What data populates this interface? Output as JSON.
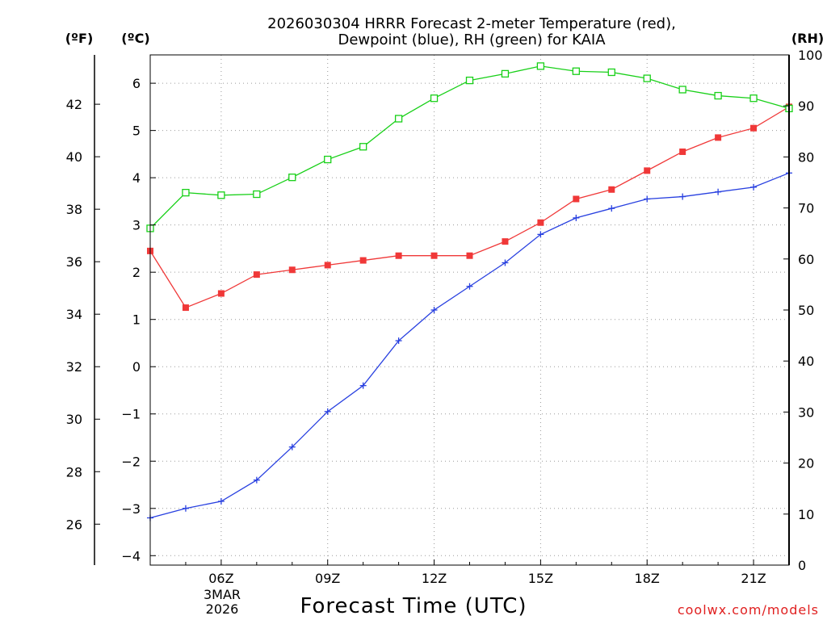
{
  "chart_data": {
    "type": "line",
    "title": [
      "2026030304 HRRR Forecast 2-meter Temperature (red),",
      "Dewpoint (blue), RH (green) for KAIA"
    ],
    "xlabel": "Forecast Time (UTC)",
    "left_units": {
      "fahrenheit": "(ºF)",
      "celsius": "(ºC)"
    },
    "right_unit": "(RH)",
    "date_label": [
      "3MAR",
      "2026"
    ],
    "credit": "coolwx.com/models",
    "x_hours": [
      4,
      5,
      6,
      7,
      8,
      9,
      10,
      11,
      12,
      13,
      14,
      15,
      16,
      17,
      18,
      19,
      20,
      21,
      22
    ],
    "x_tick_hours": [
      6,
      9,
      12,
      15,
      18,
      21
    ],
    "x_tick_labels": [
      "06Z",
      "09Z",
      "12Z",
      "15Z",
      "18Z",
      "21Z"
    ],
    "xlim": [
      4,
      22
    ],
    "ylim_c": [
      -4.2,
      6.6
    ],
    "y_ticks_c": [
      -4,
      -3,
      -2,
      -1,
      0,
      1,
      2,
      3,
      4,
      5,
      6
    ],
    "y_ticks_f": [
      26,
      28,
      30,
      32,
      34,
      36,
      38,
      40,
      42
    ],
    "ylim_rh": [
      0,
      100
    ],
    "y_ticks_rh": [
      0,
      10,
      20,
      30,
      40,
      50,
      60,
      70,
      80,
      90,
      100
    ],
    "series": [
      {
        "name": "Temperature",
        "axis": "c",
        "color": "#f03838",
        "marker": "filled-square",
        "values": [
          2.45,
          1.25,
          1.55,
          1.95,
          2.05,
          2.15,
          2.25,
          2.35,
          2.35,
          2.35,
          2.65,
          3.05,
          3.55,
          3.75,
          4.15,
          4.55,
          4.85,
          5.05,
          5.5
        ]
      },
      {
        "name": "Dewpoint",
        "axis": "c",
        "color": "#2840e0",
        "marker": "plus",
        "values": [
          -3.2,
          -3.0,
          -2.85,
          -2.4,
          -1.7,
          -0.95,
          -0.4,
          0.55,
          1.2,
          1.7,
          2.2,
          2.8,
          3.15,
          3.35,
          3.55,
          3.6,
          3.7,
          3.8,
          4.1
        ]
      },
      {
        "name": "RH",
        "axis": "rh",
        "color": "#18d018",
        "marker": "open-square",
        "values": [
          66,
          73,
          72.5,
          72.7,
          76,
          79.5,
          82,
          87.5,
          91.5,
          95,
          96.3,
          97.8,
          96.8,
          96.6,
          95.4,
          93.2,
          92,
          91.5,
          89.5
        ]
      }
    ]
  }
}
